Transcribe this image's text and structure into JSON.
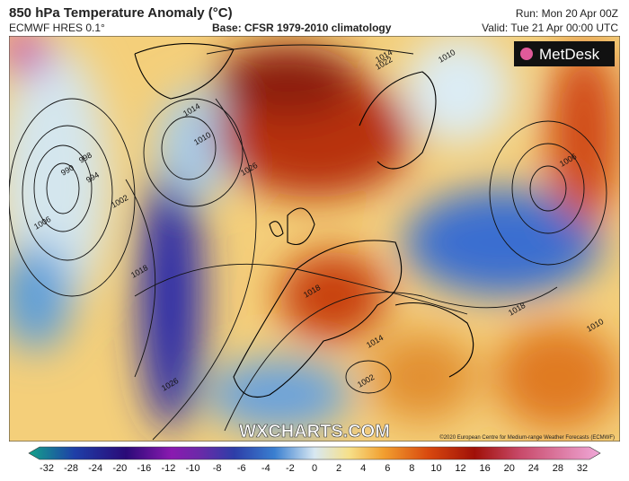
{
  "header": {
    "title": "850 hPa Temperature Anomaly (°C)",
    "model": "ECMWF HRES 0.1°",
    "base": "Base: CFSR 1979-2010 climatology",
    "run": "Run: Mon 20 Apr 00Z",
    "valid": "Valid: Tue 21 Apr 00:00 UTC"
  },
  "map": {
    "logo": "MetDesk",
    "watermark": "WXCHARTS.COM",
    "copyright": "©2020 European Centre for Medium-range Weather Forecasts (ECMWF)",
    "isobar_labels": [
      "990",
      "998",
      "994",
      "1002",
      "1006",
      "1010",
      "1014",
      "1018",
      "1022",
      "1026",
      "1014",
      "1010",
      "1006",
      "1018",
      "1026",
      "1010",
      "1002",
      "1018",
      "1014"
    ]
  },
  "colorbar": {
    "labels": [
      "-32",
      "-28",
      "-24",
      "-20",
      "-16",
      "-12",
      "-10",
      "-8",
      "-6",
      "-4",
      "-2",
      "0",
      "2",
      "4",
      "6",
      "8",
      "10",
      "12",
      "16",
      "20",
      "24",
      "28",
      "32"
    ]
  }
}
